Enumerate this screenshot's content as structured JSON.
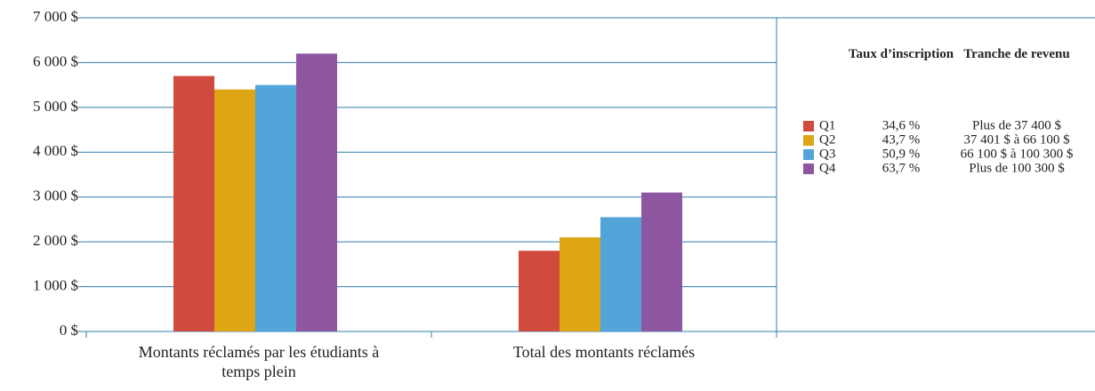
{
  "chart_data": {
    "type": "bar",
    "categories": [
      "Montants réclamés par les étudiants à temps plein",
      "Total des montants réclamés"
    ],
    "series": [
      {
        "name": "Q1",
        "color": "#d04a3d",
        "values": [
          5700,
          1800
        ]
      },
      {
        "name": "Q2",
        "color": "#dea515",
        "values": [
          5400,
          2100
        ]
      },
      {
        "name": "Q3",
        "color": "#52a5d9",
        "values": [
          5500,
          2550
        ]
      },
      {
        "name": "Q4",
        "color": "#8e56a0",
        "values": [
          6200,
          3100
        ]
      }
    ],
    "ylim": [
      0,
      7000
    ],
    "yticks": [
      {
        "value": 0,
        "label": "0 $"
      },
      {
        "value": 1000,
        "label": "1 000 $"
      },
      {
        "value": 2000,
        "label": "2 000 $"
      },
      {
        "value": 3000,
        "label": "3 000 $"
      },
      {
        "value": 4000,
        "label": "4 000 $"
      },
      {
        "value": 5000,
        "label": "5 000 $"
      },
      {
        "value": 6000,
        "label": "6 000 $"
      },
      {
        "value": 7000,
        "label": "7 000 $"
      }
    ],
    "grid": true,
    "legend": {
      "position": "right",
      "columns": [
        "Taux d’inscription",
        "Tranche de revenu"
      ],
      "rows": [
        [
          "34,6 %",
          "Plus de 37 400 $"
        ],
        [
          "43,7 %",
          "37 401 $ à 66 100 $"
        ],
        [
          "50,9 %",
          "66 100 $ à 100 300 $"
        ],
        [
          "63,7 %",
          "Plus de 100 300 $"
        ]
      ]
    }
  }
}
